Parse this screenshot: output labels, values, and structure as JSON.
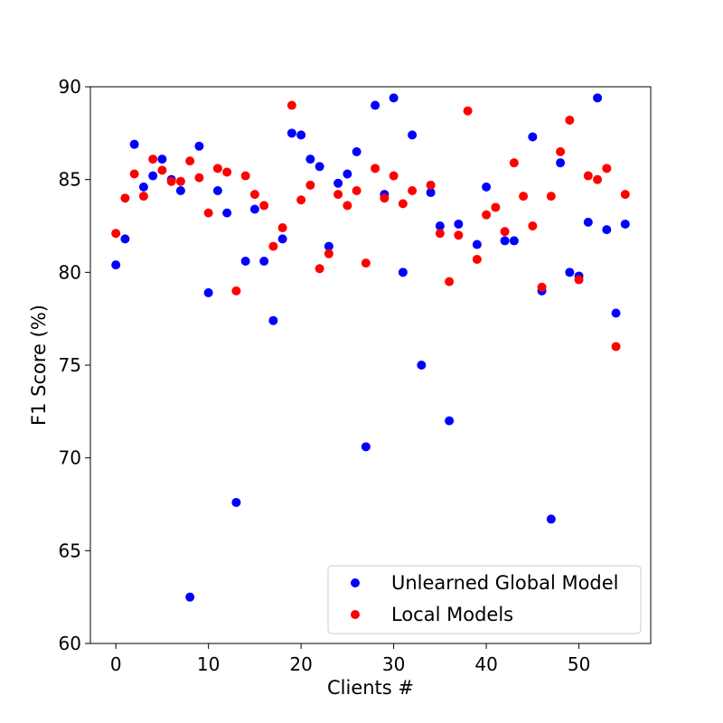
{
  "chart_data": {
    "type": "scatter",
    "xlabel": "Clients #",
    "ylabel": "F1 Score (%)",
    "xlim": [
      -2.75,
      57.75
    ],
    "ylim": [
      60,
      90
    ],
    "xticks": [
      0,
      10,
      20,
      30,
      40,
      50
    ],
    "yticks": [
      60,
      65,
      70,
      75,
      80,
      85,
      90
    ],
    "grid": false,
    "legend": "lower-right",
    "x": [
      0,
      1,
      2,
      3,
      4,
      5,
      6,
      7,
      8,
      9,
      10,
      11,
      12,
      13,
      14,
      15,
      16,
      17,
      18,
      19,
      20,
      21,
      22,
      23,
      24,
      25,
      26,
      27,
      28,
      29,
      30,
      31,
      32,
      33,
      34,
      35,
      36,
      37,
      38,
      39,
      40,
      41,
      42,
      43,
      44,
      45,
      46,
      47,
      48,
      49,
      50,
      51,
      52,
      53,
      54,
      55
    ],
    "series": [
      {
        "name": "Unlearned Global Model",
        "color": "#0000ff",
        "values": [
          80.4,
          81.8,
          86.9,
          84.6,
          85.2,
          86.1,
          85.0,
          84.4,
          62.5,
          86.8,
          78.9,
          84.4,
          83.2,
          67.6,
          80.6,
          83.4,
          80.6,
          77.4,
          81.8,
          87.5,
          87.4,
          86.1,
          85.7,
          81.4,
          84.8,
          85.3,
          86.5,
          70.6,
          89.0,
          84.2,
          89.4,
          80.0,
          87.4,
          75.0,
          84.3,
          82.5,
          72.0,
          82.6,
          null,
          81.5,
          84.6,
          null,
          81.7,
          81.7,
          null,
          87.3,
          79.0,
          66.7,
          85.9,
          80.0,
          79.8,
          82.7,
          89.4,
          82.3,
          77.8,
          82.6
        ]
      },
      {
        "name": "Local Models",
        "color": "#ff0000",
        "values": [
          82.1,
          84.0,
          85.3,
          84.1,
          86.1,
          85.5,
          84.9,
          84.9,
          86.0,
          85.1,
          83.2,
          85.6,
          85.4,
          79.0,
          85.2,
          84.2,
          83.6,
          81.4,
          82.4,
          89.0,
          83.9,
          84.7,
          80.2,
          81.0,
          84.2,
          83.6,
          84.4,
          80.5,
          85.6,
          84.0,
          85.2,
          83.7,
          84.4,
          null,
          84.7,
          82.1,
          79.5,
          82.0,
          88.7,
          80.7,
          83.1,
          83.5,
          82.2,
          85.9,
          84.1,
          82.5,
          79.2,
          84.1,
          86.5,
          88.2,
          79.6,
          85.2,
          85.0,
          85.6,
          76.0,
          84.2
        ]
      }
    ]
  }
}
